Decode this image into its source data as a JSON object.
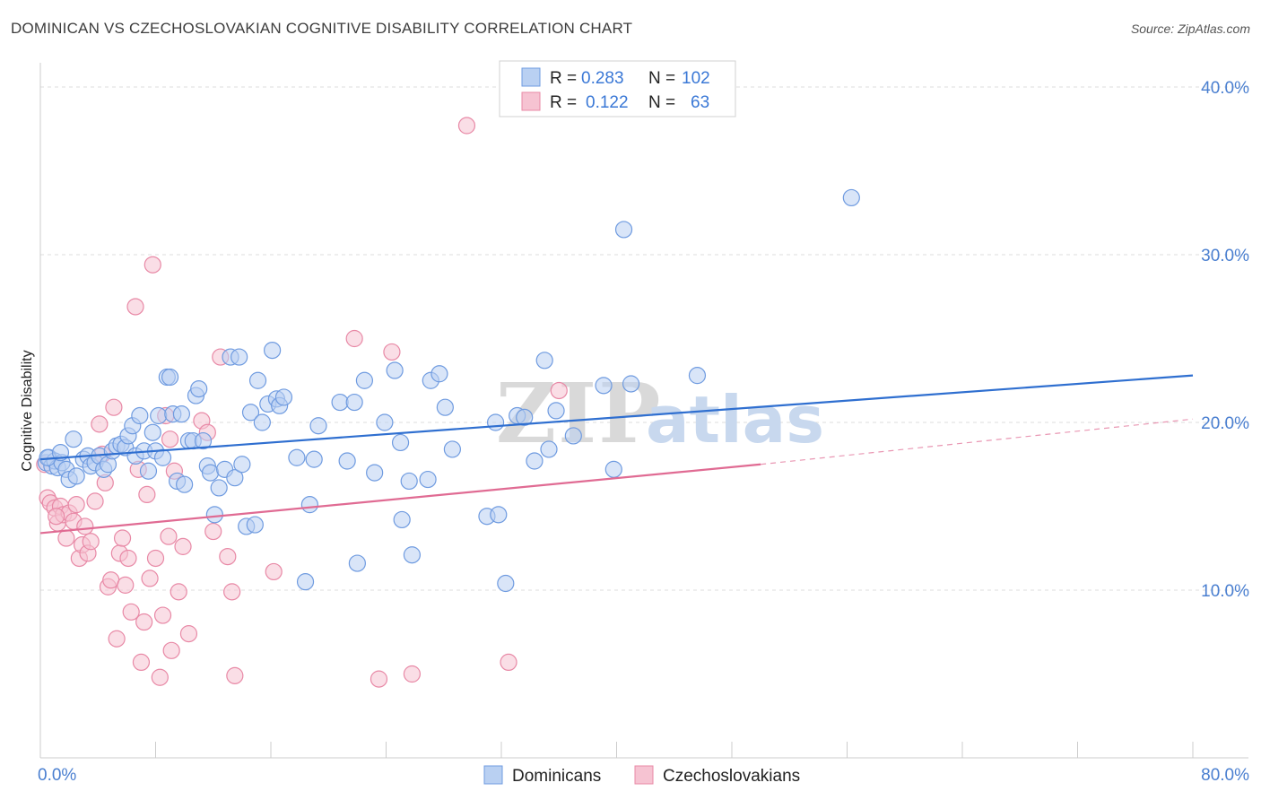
{
  "header": {
    "title": "DOMINICAN VS CZECHOSLOVAKIAN COGNITIVE DISABILITY CORRELATION CHART",
    "source": "Source: ZipAtlas.com"
  },
  "legend": {
    "rows": [
      {
        "r_label": "R =",
        "r_value": "0.283",
        "n_label": "N =",
        "n_value": "102"
      },
      {
        "r_label": "R =",
        "r_value": "0.122",
        "n_label": "N =",
        "n_value": "63"
      }
    ]
  },
  "watermark": {
    "part1": "ZIP",
    "part2": "atlas"
  },
  "colors": {
    "blue_fill": "#b9d0f2",
    "blue_stroke": "#6f9be0",
    "blue_line": "#2f6fd0",
    "pink_fill": "#f6c3d2",
    "pink_stroke": "#e889a6",
    "pink_line": "#e06b93",
    "axis_label": "#4a7fd0",
    "grid": "#dddddd"
  },
  "chart_data": {
    "type": "scatter",
    "title": "DOMINICAN VS CZECHOSLOVAKIAN COGNITIVE DISABILITY CORRELATION CHART",
    "ylabel": "Cognitive Disability",
    "xlim": [
      0,
      80
    ],
    "ylim": [
      0,
      40
    ],
    "x_tick_labels": [
      "0.0%",
      "80.0%"
    ],
    "y_ticks": [
      10,
      20,
      30,
      40
    ],
    "y_tick_labels": [
      "10.0%",
      "20.0%",
      "30.0%",
      "40.0%"
    ],
    "grid": true,
    "legend_position": "top-center",
    "series": [
      {
        "name": "Dominicans",
        "color": "#6f9be0",
        "r": 0.283,
        "n": 102,
        "trend": {
          "x": [
            0,
            80
          ],
          "y": [
            17.8,
            22.8
          ]
        },
        "points": [
          [
            0.4,
            17.6
          ],
          [
            0.6,
            17.9
          ],
          [
            0.8,
            17.4
          ],
          [
            1.0,
            17.7
          ],
          [
            1.2,
            17.3
          ],
          [
            1.5,
            17.6
          ],
          [
            1.8,
            17.2
          ],
          [
            2.0,
            16.6
          ],
          [
            2.3,
            19.0
          ],
          [
            2.5,
            16.8
          ],
          [
            3.0,
            17.8
          ],
          [
            3.3,
            18.0
          ],
          [
            3.5,
            17.4
          ],
          [
            3.8,
            17.6
          ],
          [
            4.1,
            18.0
          ],
          [
            4.4,
            17.2
          ],
          [
            4.7,
            17.5
          ],
          [
            5.0,
            18.3
          ],
          [
            5.3,
            18.6
          ],
          [
            5.6,
            18.7
          ],
          [
            5.9,
            18.5
          ],
          [
            6.1,
            19.2
          ],
          [
            6.4,
            19.8
          ],
          [
            6.6,
            18.0
          ],
          [
            6.9,
            20.4
          ],
          [
            7.2,
            18.3
          ],
          [
            7.5,
            17.1
          ],
          [
            7.8,
            19.4
          ],
          [
            8.0,
            18.3
          ],
          [
            8.2,
            20.4
          ],
          [
            8.5,
            17.9
          ],
          [
            8.8,
            22.7
          ],
          [
            9.0,
            22.7
          ],
          [
            9.2,
            20.5
          ],
          [
            9.5,
            16.5
          ],
          [
            9.8,
            20.5
          ],
          [
            10.0,
            16.3
          ],
          [
            10.3,
            18.9
          ],
          [
            10.6,
            18.9
          ],
          [
            10.8,
            21.6
          ],
          [
            11.0,
            22.0
          ],
          [
            11.3,
            18.9
          ],
          [
            11.6,
            17.4
          ],
          [
            11.8,
            17.0
          ],
          [
            12.1,
            14.5
          ],
          [
            12.4,
            16.1
          ],
          [
            12.8,
            17.2
          ],
          [
            13.2,
            23.9
          ],
          [
            13.5,
            16.7
          ],
          [
            13.8,
            23.9
          ],
          [
            14.0,
            17.5
          ],
          [
            14.3,
            13.8
          ],
          [
            14.6,
            20.6
          ],
          [
            14.9,
            13.9
          ],
          [
            15.1,
            22.5
          ],
          [
            15.4,
            20.0
          ],
          [
            15.8,
            21.1
          ],
          [
            16.1,
            24.3
          ],
          [
            16.4,
            21.4
          ],
          [
            16.6,
            21.0
          ],
          [
            16.9,
            21.5
          ],
          [
            17.8,
            17.9
          ],
          [
            18.4,
            10.5
          ],
          [
            18.7,
            15.1
          ],
          [
            19.0,
            17.8
          ],
          [
            19.3,
            19.8
          ],
          [
            20.8,
            21.2
          ],
          [
            21.3,
            17.7
          ],
          [
            21.8,
            21.2
          ],
          [
            22.0,
            11.6
          ],
          [
            22.5,
            22.5
          ],
          [
            23.2,
            17.0
          ],
          [
            23.9,
            20.0
          ],
          [
            24.6,
            23.1
          ],
          [
            25.0,
            18.8
          ],
          [
            25.1,
            14.2
          ],
          [
            25.6,
            16.5
          ],
          [
            25.8,
            12.1
          ],
          [
            26.9,
            16.6
          ],
          [
            27.1,
            22.5
          ],
          [
            27.7,
            22.9
          ],
          [
            28.1,
            20.9
          ],
          [
            28.6,
            18.4
          ],
          [
            31.0,
            14.4
          ],
          [
            31.6,
            20.0
          ],
          [
            31.8,
            14.5
          ],
          [
            32.3,
            10.4
          ],
          [
            33.1,
            20.4
          ],
          [
            33.6,
            20.3
          ],
          [
            34.3,
            17.7
          ],
          [
            35.0,
            23.7
          ],
          [
            35.3,
            18.4
          ],
          [
            35.8,
            20.7
          ],
          [
            37.0,
            19.2
          ],
          [
            39.1,
            22.2
          ],
          [
            39.8,
            17.2
          ],
          [
            40.5,
            31.5
          ],
          [
            41.0,
            22.3
          ],
          [
            45.6,
            22.8
          ],
          [
            56.3,
            33.4
          ],
          [
            0.5,
            17.9
          ],
          [
            1.4,
            18.2
          ]
        ]
      },
      {
        "name": "Czechoslovakians",
        "color": "#e889a6",
        "r": 0.122,
        "n": 63,
        "trend": {
          "x": [
            0,
            50
          ],
          "y": [
            13.4,
            17.5
          ]
        },
        "trend_extension": {
          "x": [
            50,
            80
          ],
          "y": [
            17.5,
            20.2
          ]
        },
        "points": [
          [
            0.3,
            17.5
          ],
          [
            0.5,
            15.5
          ],
          [
            0.7,
            15.2
          ],
          [
            1.0,
            14.9
          ],
          [
            1.2,
            14.0
          ],
          [
            1.4,
            15.0
          ],
          [
            1.6,
            14.5
          ],
          [
            1.8,
            13.1
          ],
          [
            2.0,
            14.6
          ],
          [
            2.3,
            14.1
          ],
          [
            2.5,
            15.1
          ],
          [
            2.7,
            11.9
          ],
          [
            2.9,
            12.7
          ],
          [
            3.1,
            13.8
          ],
          [
            3.3,
            12.2
          ],
          [
            3.5,
            12.9
          ],
          [
            3.8,
            15.3
          ],
          [
            4.1,
            19.9
          ],
          [
            4.3,
            18.1
          ],
          [
            4.5,
            16.4
          ],
          [
            4.7,
            10.2
          ],
          [
            4.9,
            10.6
          ],
          [
            5.1,
            20.9
          ],
          [
            5.3,
            7.1
          ],
          [
            5.5,
            12.2
          ],
          [
            5.7,
            13.1
          ],
          [
            5.9,
            10.3
          ],
          [
            6.1,
            11.9
          ],
          [
            6.3,
            8.7
          ],
          [
            6.6,
            26.9
          ],
          [
            6.8,
            17.2
          ],
          [
            7.0,
            5.7
          ],
          [
            7.2,
            8.1
          ],
          [
            7.4,
            15.7
          ],
          [
            7.6,
            10.7
          ],
          [
            7.8,
            29.4
          ],
          [
            8.0,
            11.9
          ],
          [
            8.3,
            4.8
          ],
          [
            8.5,
            8.5
          ],
          [
            8.7,
            20.4
          ],
          [
            8.9,
            13.2
          ],
          [
            9.1,
            6.4
          ],
          [
            9.3,
            17.1
          ],
          [
            9.6,
            9.9
          ],
          [
            9.9,
            12.6
          ],
          [
            10.3,
            7.4
          ],
          [
            11.2,
            20.1
          ],
          [
            11.6,
            19.4
          ],
          [
            12.0,
            13.5
          ],
          [
            12.5,
            23.9
          ],
          [
            13.0,
            12.0
          ],
          [
            13.3,
            9.9
          ],
          [
            13.5,
            4.9
          ],
          [
            16.2,
            11.1
          ],
          [
            21.8,
            25.0
          ],
          [
            23.5,
            4.7
          ],
          [
            24.4,
            24.2
          ],
          [
            25.8,
            5.0
          ],
          [
            29.6,
            37.7
          ],
          [
            32.5,
            5.7
          ],
          [
            36.0,
            21.9
          ],
          [
            9.0,
            19.0
          ],
          [
            1.1,
            14.4
          ]
        ]
      }
    ]
  }
}
